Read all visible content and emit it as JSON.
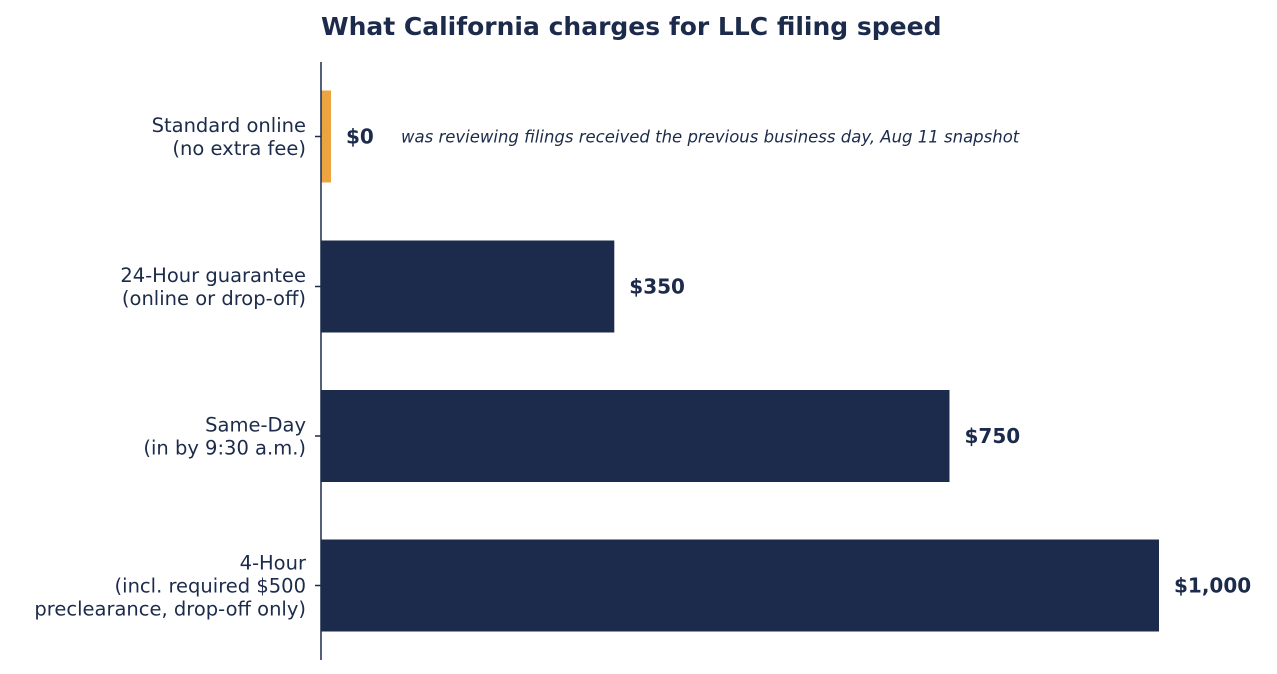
{
  "colors": {
    "bar": "#1c2b4b",
    "highlight": "#eba440",
    "text": "#1c2b4b",
    "axis": "#1c2b4b",
    "background": "#ffffff"
  },
  "chart_data": {
    "type": "bar",
    "orientation": "horizontal",
    "title": "What California charges for LLC filing speed",
    "xlabel": "",
    "ylabel": "",
    "xlim": [
      0,
      1000
    ],
    "grid": false,
    "legend": "none",
    "categories": [
      [
        "Standard online",
        "(no extra fee)"
      ],
      [
        "24-Hour guarantee",
        "(online or drop-off)"
      ],
      [
        "Same-Day",
        "(in by 9:30 a.m.)"
      ],
      [
        "4-Hour",
        "(incl. required $500",
        "preclearance, drop-off only)"
      ]
    ],
    "values": [
      0,
      350,
      750,
      1000
    ],
    "value_labels": [
      "$0",
      "$350",
      "$750",
      "$1,000"
    ],
    "highlight_index": 0,
    "annotations": [
      {
        "category_index": 0,
        "text": "was reviewing filings received the previous business day, Aug 11 snapshot"
      }
    ]
  }
}
